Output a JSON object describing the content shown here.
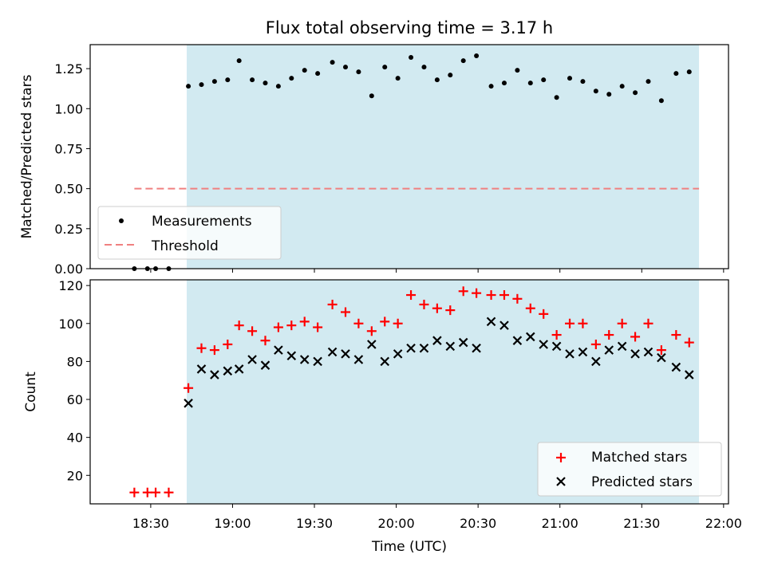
{
  "title": "Flux total observing time = 3.17 h",
  "colors": {
    "shade": "#add8e6",
    "threshold": "#f08080",
    "matched": "#ff0000",
    "predicted": "#000000",
    "measurement": "#000000"
  },
  "chart_data": [
    {
      "type": "scatter",
      "title": "Flux total observing time = 3.17 h",
      "xlabel": "",
      "ylabel": "Matched/Predicted stars",
      "xlim": [
        18.13,
        22.03
      ],
      "ylim": [
        0,
        1.4
      ],
      "yticks": [
        0,
        0.25,
        0.5,
        0.75,
        1.0,
        1.25
      ],
      "ytick_labels": [
        "0.00",
        "0.25",
        "0.50",
        "0.75",
        "1.00",
        "1.25"
      ],
      "xticks": [
        18.5,
        19.0,
        19.5,
        20.0,
        20.5,
        21.0,
        21.5,
        22.0
      ],
      "shaded_region": [
        18.72,
        21.85
      ],
      "legend": {
        "position": "lower-left",
        "entries": [
          "Measurements",
          "Threshold"
        ]
      },
      "threshold": {
        "name": "Threshold",
        "x": [
          18.4,
          21.85
        ],
        "y": 0.5
      },
      "series": [
        {
          "name": "Measurements",
          "x": [
            18.4,
            18.48,
            18.53,
            18.61,
            18.73,
            18.81,
            18.89,
            18.97,
            19.04,
            19.12,
            19.2,
            19.28,
            19.36,
            19.44,
            19.52,
            19.61,
            19.69,
            19.77,
            19.85,
            19.93,
            20.01,
            20.09,
            20.17,
            20.25,
            20.33,
            20.41,
            20.49,
            20.58,
            20.66,
            20.74,
            20.82,
            20.9,
            20.98,
            21.06,
            21.14,
            21.22,
            21.3,
            21.38,
            21.46,
            21.54,
            21.62,
            21.71,
            21.79
          ],
          "values": [
            0.0,
            0.0,
            0.0,
            0.0,
            1.14,
            1.15,
            1.17,
            1.18,
            1.3,
            1.18,
            1.16,
            1.14,
            1.19,
            1.24,
            1.22,
            1.29,
            1.26,
            1.23,
            1.08,
            1.26,
            1.19,
            1.32,
            1.26,
            1.18,
            1.21,
            1.3,
            1.33,
            1.14,
            1.16,
            1.24,
            1.16,
            1.18,
            1.07,
            1.19,
            1.17,
            1.11,
            1.09,
            1.14,
            1.1,
            1.17,
            1.05,
            1.22,
            1.23
          ]
        }
      ]
    },
    {
      "type": "scatter",
      "title": "",
      "xlabel": "Time (UTC)",
      "ylabel": "Count",
      "xlim": [
        18.13,
        22.03
      ],
      "ylim": [
        5,
        123
      ],
      "yticks": [
        20,
        40,
        60,
        80,
        100,
        120
      ],
      "ytick_labels": [
        "20",
        "40",
        "60",
        "80",
        "100",
        "120"
      ],
      "xticks": [
        18.5,
        19.0,
        19.5,
        20.0,
        20.5,
        21.0,
        21.5,
        22.0
      ],
      "xtick_labels": [
        "18:30",
        "19:00",
        "19:30",
        "20:00",
        "20:30",
        "21:00",
        "21:30",
        "22:00"
      ],
      "shaded_region": [
        18.72,
        21.85
      ],
      "legend": {
        "position": "lower-right",
        "entries": [
          "Matched stars",
          "Predicted stars"
        ]
      },
      "series": [
        {
          "name": "Matched stars",
          "marker": "+",
          "x": [
            18.4,
            18.48,
            18.53,
            18.61,
            18.73,
            18.81,
            18.89,
            18.97,
            19.04,
            19.12,
            19.2,
            19.28,
            19.36,
            19.44,
            19.52,
            19.61,
            19.69,
            19.77,
            19.85,
            19.93,
            20.01,
            20.09,
            20.17,
            20.25,
            20.33,
            20.41,
            20.49,
            20.58,
            20.66,
            20.74,
            20.82,
            20.9,
            20.98,
            21.06,
            21.14,
            21.22,
            21.3,
            21.38,
            21.46,
            21.54,
            21.62,
            21.71,
            21.79
          ],
          "values": [
            11,
            11,
            11,
            11,
            66,
            87,
            86,
            89,
            99,
            96,
            91,
            98,
            99,
            101,
            98,
            110,
            106,
            100,
            96,
            101,
            100,
            115,
            110,
            108,
            107,
            117,
            116,
            115,
            115,
            113,
            108,
            105,
            94,
            100,
            100,
            89,
            94,
            100,
            93,
            100,
            86,
            94,
            90
          ]
        },
        {
          "name": "Predicted stars",
          "marker": "x",
          "x": [
            18.73,
            18.81,
            18.89,
            18.97,
            19.04,
            19.12,
            19.2,
            19.28,
            19.36,
            19.44,
            19.52,
            19.61,
            19.69,
            19.77,
            19.85,
            19.93,
            20.01,
            20.09,
            20.17,
            20.25,
            20.33,
            20.41,
            20.49,
            20.58,
            20.66,
            20.74,
            20.82,
            20.9,
            20.98,
            21.06,
            21.14,
            21.22,
            21.3,
            21.38,
            21.46,
            21.54,
            21.62,
            21.71,
            21.79
          ],
          "values": [
            58,
            76,
            73,
            75,
            76,
            81,
            78,
            86,
            83,
            81,
            80,
            85,
            84,
            81,
            89,
            80,
            84,
            87,
            87,
            91,
            88,
            90,
            87,
            101,
            99,
            91,
            93,
            89,
            88,
            84,
            85,
            80,
            86,
            88,
            84,
            85,
            82,
            77,
            73
          ]
        }
      ]
    }
  ]
}
